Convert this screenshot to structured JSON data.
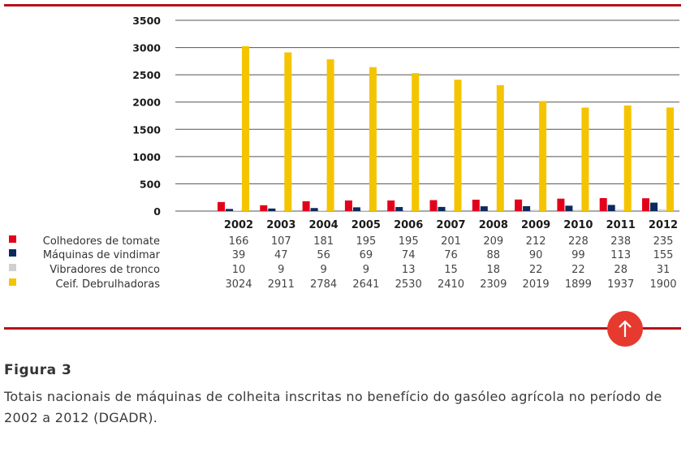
{
  "figure": {
    "label": "Figura 3",
    "caption": "Totais nacionais de máquinas de colheita inscritas no benefício do gasóleo agrícola no período de 2002 a 2012 (DGADR)."
  },
  "colors": {
    "accent_rule": "#b5121b",
    "scroll_button": "#e63a2f"
  },
  "icons": {
    "scroll_up": "arrow-up-icon"
  },
  "chart_data": {
    "type": "bar",
    "categories": [
      "2002",
      "2003",
      "2004",
      "2005",
      "2006",
      "2007",
      "2008",
      "2009",
      "2010",
      "2011",
      "2012"
    ],
    "ylim": [
      0,
      3500
    ],
    "yticks": [
      0,
      500,
      1000,
      1500,
      2000,
      2500,
      3000,
      3500
    ],
    "grid": true,
    "legend_placement": "bottom-table",
    "series": [
      {
        "name": "Colhedores de tomate",
        "color": "#e3001b",
        "values": [
          166,
          107,
          181,
          195,
          195,
          201,
          209,
          212,
          228,
          238,
          235
        ]
      },
      {
        "name": "Máquinas de vindimar",
        "color": "#0d2a5e",
        "values": [
          39,
          47,
          56,
          69,
          74,
          76,
          88,
          90,
          99,
          113,
          155
        ]
      },
      {
        "name": "Vibradores de tronco",
        "color": "#d0d0d0",
        "values": [
          10,
          9,
          9,
          9,
          13,
          15,
          18,
          22,
          22,
          28,
          31
        ]
      },
      {
        "name": "Ceif. Debrulhadoras",
        "color": "#f5c400",
        "values": [
          3024,
          2911,
          2784,
          2641,
          2530,
          2410,
          2309,
          2019,
          1899,
          1937,
          1900
        ]
      }
    ]
  }
}
